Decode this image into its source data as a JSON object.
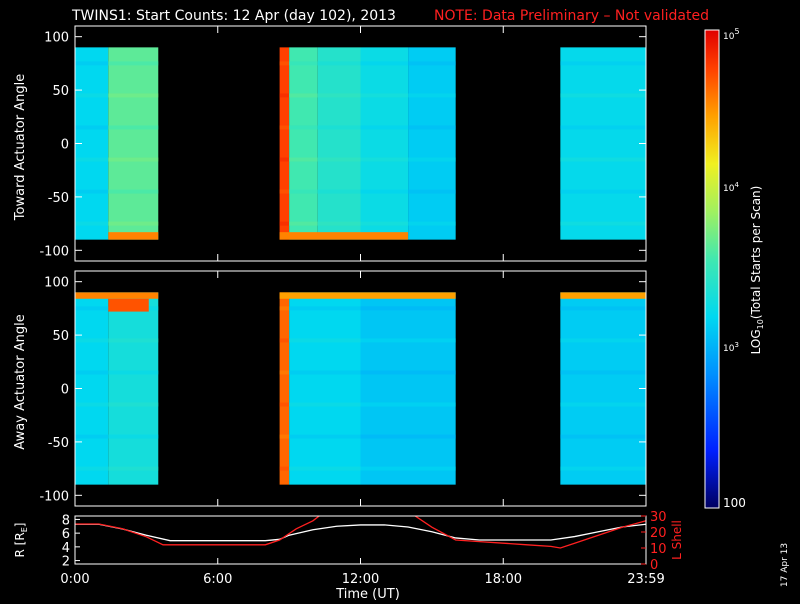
{
  "title": {
    "main": "TWINS1: Start Counts: 12 Apr (day 102), 2013",
    "note": "NOTE: Data Preliminary – Not validated"
  },
  "stamp": "17 Apr 13",
  "colors": {
    "background": "#000000",
    "axes": "#ffffff",
    "note": "#ff2020",
    "position_r": "#ffffff",
    "lshell": "#ff2020"
  },
  "chart_data": [
    {
      "type": "heatmap",
      "panel": "top",
      "ylabel": "Toward Actuator Angle",
      "ylim": [
        -110,
        110
      ],
      "yticks": [
        100,
        50,
        0,
        -50,
        -100
      ],
      "xlim_hours": [
        0,
        24
      ],
      "data_range_deg": [
        -90,
        90
      ],
      "coverage_hours": [
        [
          0,
          3.5
        ],
        [
          8.6,
          16
        ],
        [
          20.4,
          24
        ]
      ],
      "segments": [
        {
          "t": [
            0.0,
            1.4
          ],
          "level": 0.4
        },
        {
          "t": [
            1.4,
            3.5
          ],
          "level": 0.55
        },
        {
          "t": [
            8.6,
            9.0
          ],
          "level": 0.92
        },
        {
          "t": [
            9.0,
            10.2
          ],
          "level": 0.52
        },
        {
          "t": [
            10.2,
            12.0
          ],
          "level": 0.47
        },
        {
          "t": [
            12.0,
            14.0
          ],
          "level": 0.42
        },
        {
          "t": [
            14.0,
            16.0
          ],
          "level": 0.38
        },
        {
          "t": [
            20.4,
            24.0
          ],
          "level": 0.41
        }
      ],
      "bands": [
        {
          "t": [
            1.4,
            3.5
          ],
          "deg": [
            -90,
            -83
          ],
          "level": 0.85
        },
        {
          "t": [
            8.6,
            14.0
          ],
          "deg": [
            -90,
            -83
          ],
          "level": 0.85
        }
      ]
    },
    {
      "type": "heatmap",
      "panel": "bottom",
      "ylabel": "Away Actuator Angle",
      "ylim": [
        -110,
        110
      ],
      "yticks": [
        100,
        50,
        0,
        -50,
        -100
      ],
      "xlim_hours": [
        0,
        24
      ],
      "data_range_deg": [
        -90,
        90
      ],
      "coverage_hours": [
        [
          0,
          3.5
        ],
        [
          8.6,
          16
        ],
        [
          20.4,
          24
        ]
      ],
      "segments": [
        {
          "t": [
            0.0,
            1.4
          ],
          "level": 0.4
        },
        {
          "t": [
            1.4,
            3.5
          ],
          "level": 0.44
        },
        {
          "t": [
            8.6,
            9.0
          ],
          "level": 0.88
        },
        {
          "t": [
            9.0,
            12.0
          ],
          "level": 0.4
        },
        {
          "t": [
            12.0,
            16.0
          ],
          "level": 0.37
        },
        {
          "t": [
            20.4,
            24.0
          ],
          "level": 0.38
        }
      ],
      "bands": [
        {
          "t": [
            0.0,
            3.5
          ],
          "deg": [
            84,
            90
          ],
          "level": 0.85
        },
        {
          "t": [
            1.4,
            3.1
          ],
          "deg": [
            72,
            84
          ],
          "level": 0.9
        },
        {
          "t": [
            8.6,
            16.0
          ],
          "deg": [
            84,
            90
          ],
          "level": 0.82
        },
        {
          "t": [
            20.4,
            24.0
          ],
          "deg": [
            84,
            90
          ],
          "level": 0.82
        }
      ]
    },
    {
      "type": "line",
      "panel": "position",
      "xlabel": "Time (UT)",
      "xticks": [
        "0:00",
        "6:00",
        "12:00",
        "18:00",
        "23:59"
      ],
      "xtick_hours": [
        0,
        6,
        12,
        18,
        24
      ],
      "ylabel_left": "R [R",
      "ylabel_left_sub": "E",
      "ylabel_left_end": "]",
      "ylim_left": [
        1.5,
        8.5
      ],
      "yticks_left": [
        8,
        6,
        4,
        2
      ],
      "ylabel_right": "L Shell",
      "ylim_right": [
        0,
        30
      ],
      "yticks_right": [
        30,
        20,
        10,
        0
      ],
      "series": [
        {
          "axis": "left",
          "x": [
            0,
            1,
            2,
            3,
            4,
            5,
            6,
            7,
            8,
            8.6,
            9,
            10,
            11,
            12,
            13,
            14,
            15,
            16,
            17,
            18,
            19,
            20,
            21,
            22,
            23,
            24
          ],
          "y": [
            7.3,
            7.3,
            6.6,
            5.7,
            4.9,
            4.9,
            4.9,
            4.9,
            4.9,
            5.1,
            5.7,
            6.5,
            7.0,
            7.2,
            7.2,
            6.9,
            6.2,
            5.3,
            5.0,
            5.0,
            5.0,
            5.0,
            5.5,
            6.2,
            6.9,
            7.3
          ]
        },
        {
          "axis": "right",
          "x": [
            0,
            1,
            2,
            3,
            3.7,
            5,
            6,
            7,
            8,
            8.6,
            9.3,
            10.0,
            10.35,
            14.2,
            15,
            16,
            17,
            18,
            19,
            20,
            20.4,
            21,
            22,
            23,
            24
          ],
          "y": [
            25,
            25,
            22,
            17,
            12,
            12,
            12,
            12,
            12,
            15,
            22,
            27,
            31,
            31,
            23,
            15,
            14,
            13,
            12,
            11,
            10,
            13,
            18,
            23,
            27
          ]
        }
      ]
    }
  ],
  "colorbar": {
    "label_prefix": "LOG",
    "label_sub": "10",
    "label_suffix": "(Total Starts per Scan)",
    "scale": "log",
    "range": [
      100,
      100000
    ],
    "tick_bottom": "100",
    "tick_base": "10",
    "tick_exponents": [
      "3",
      "4",
      "5"
    ]
  }
}
